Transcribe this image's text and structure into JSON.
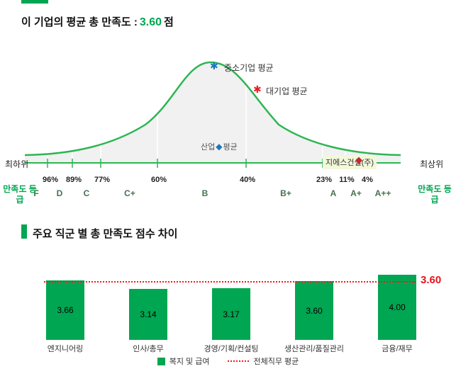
{
  "header": {
    "title_prefix": "이 기업의 평균 총 만족도 :",
    "score": "3.60",
    "suffix": "점"
  },
  "distribution_scale": {
    "left": "만족도 등급",
    "right": "만족도 등급"
  },
  "section2_title": "주요 직군 별 총 만족도 점수 차이",
  "chart_data": [
    {
      "type": "area",
      "subtype": "bell-curve-percentile-distribution",
      "axis_left": "최하위",
      "axis_right": "최상위",
      "percentile_boundaries": [
        "96%",
        "89%",
        "77%",
        "60%",
        "40%",
        "23%",
        "11%",
        "4%"
      ],
      "grades": [
        "F",
        "D",
        "C",
        "C+",
        "B",
        "B+",
        "A",
        "A+",
        "A++"
      ],
      "scale_label": "만족도 등급",
      "markers": [
        {
          "name": "중소기업 평균",
          "shape": "asterisk",
          "color": "#1b75bc",
          "position": "curve-peak"
        },
        {
          "name": "대기업 평균",
          "shape": "asterisk",
          "color": "#ed1c24",
          "position": "right-slope"
        },
        {
          "name": "산업평균",
          "shape": "diamond",
          "color": "#1b75bc",
          "parts": [
            "산업",
            "평균"
          ]
        },
        {
          "name": "지에스건설(주)",
          "shape": "diamond",
          "color": "#c1272d",
          "highlighted": true,
          "position": "A+ band"
        }
      ],
      "curve_color": "#2db553",
      "fill_color": "#f1f1f1"
    },
    {
      "type": "bar",
      "title": "주요 직군 별 총 만족도 점수 차이",
      "categories": [
        "엔지니어링",
        "인사/총무",
        "경영/기획/컨설팅",
        "생산관리/품질관리",
        "금융/재무"
      ],
      "series": [
        {
          "name": "복지 및 급여",
          "values": [
            3.66,
            3.14,
            3.17,
            3.6,
            4.0
          ],
          "display": [
            "3.66",
            "3.14",
            "3.17",
            "3.60",
            "4.00"
          ],
          "color": "#00a651"
        }
      ],
      "average_line": {
        "label": "전체직무 평균",
        "value": 3.6,
        "display": "3.60",
        "color": "#ff1515",
        "style": "dotted"
      },
      "ylim": [
        0,
        4.2
      ],
      "legend_position": "bottom"
    }
  ],
  "colors": {
    "green": "#00a651",
    "curve_green": "#2db553",
    "red": "#ff1515",
    "blue": "#1b75bc",
    "highlight_bg": "#f2f8da"
  }
}
